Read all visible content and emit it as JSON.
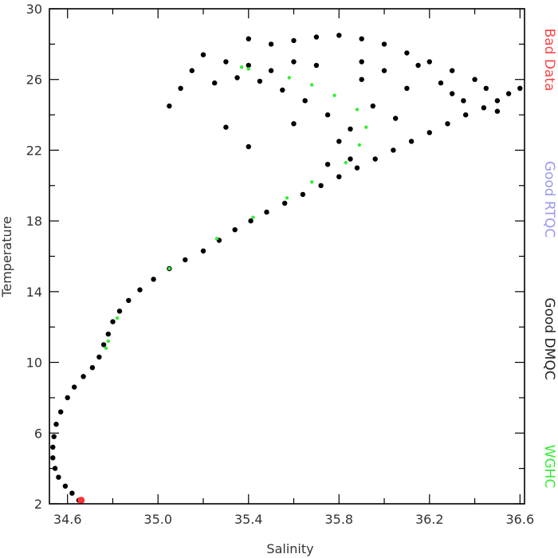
{
  "chart_data": {
    "type": "scatter",
    "title": "",
    "xlabel": "Salinity",
    "ylabel": "Temperature",
    "xlim": [
      34.52,
      36.62
    ],
    "ylim": [
      2,
      30
    ],
    "x_ticks": [
      34.6,
      35.0,
      35.4,
      35.8,
      36.2,
      36.6
    ],
    "x_tick_labels": [
      "34.6",
      "35.0",
      "35.4",
      "35.8",
      "36.2",
      "36.6"
    ],
    "y_ticks": [
      2,
      6,
      10,
      14,
      18,
      22,
      26,
      30
    ],
    "y_tick_labels": [
      "2",
      "6",
      "10",
      "14",
      "18",
      "22",
      "26",
      "30"
    ],
    "grid": false,
    "legend_placement": "right, rotated vertically",
    "legend": [
      {
        "label": "Bad Data",
        "color": "#ff4444"
      },
      {
        "label": "Good RTQC",
        "color": "#9999ee"
      },
      {
        "label": "Good DMQC",
        "color": "#222222"
      },
      {
        "label": "WGHC",
        "color": "#33ee33"
      }
    ],
    "series": [
      {
        "legend_ref": "Good DMQC",
        "color": "#000000",
        "points": [
          [
            34.65,
            2.2
          ],
          [
            34.62,
            2.6
          ],
          [
            34.59,
            3.0
          ],
          [
            34.56,
            3.5
          ],
          [
            34.545,
            4.0
          ],
          [
            34.535,
            4.6
          ],
          [
            34.535,
            5.2
          ],
          [
            34.54,
            5.8
          ],
          [
            34.55,
            6.5
          ],
          [
            34.57,
            7.2
          ],
          [
            34.6,
            8.0
          ],
          [
            34.63,
            8.6
          ],
          [
            34.67,
            9.2
          ],
          [
            34.71,
            9.7
          ],
          [
            34.74,
            10.3
          ],
          [
            34.76,
            11.0
          ],
          [
            34.78,
            11.6
          ],
          [
            34.8,
            12.3
          ],
          [
            34.83,
            12.9
          ],
          [
            34.87,
            13.5
          ],
          [
            34.92,
            14.1
          ],
          [
            34.98,
            14.7
          ],
          [
            35.05,
            15.3
          ],
          [
            35.12,
            15.8
          ],
          [
            35.2,
            16.3
          ],
          [
            35.27,
            16.9
          ],
          [
            35.34,
            17.5
          ],
          [
            35.41,
            18.0
          ],
          [
            35.48,
            18.5
          ],
          [
            35.56,
            19.0
          ],
          [
            35.64,
            19.5
          ],
          [
            35.72,
            20.0
          ],
          [
            35.8,
            20.5
          ],
          [
            35.88,
            21.0
          ],
          [
            35.96,
            21.5
          ],
          [
            36.04,
            22.0
          ],
          [
            36.12,
            22.5
          ],
          [
            36.2,
            23.0
          ],
          [
            36.28,
            23.5
          ],
          [
            36.36,
            24.0
          ],
          [
            36.44,
            24.4
          ],
          [
            36.5,
            24.8
          ],
          [
            36.55,
            25.2
          ],
          [
            36.6,
            25.5
          ],
          [
            36.45,
            25.5
          ],
          [
            36.4,
            26.0
          ],
          [
            36.3,
            26.5
          ],
          [
            36.2,
            27.0
          ],
          [
            36.1,
            27.5
          ],
          [
            36.0,
            28.0
          ],
          [
            35.9,
            28.3
          ],
          [
            35.8,
            28.5
          ],
          [
            35.7,
            28.4
          ],
          [
            35.6,
            28.2
          ],
          [
            35.5,
            28.0
          ],
          [
            35.4,
            28.3
          ],
          [
            35.9,
            27.0
          ],
          [
            36.0,
            26.5
          ],
          [
            36.1,
            25.5
          ],
          [
            35.7,
            26.8
          ],
          [
            35.6,
            27.0
          ],
          [
            35.5,
            26.5
          ],
          [
            35.4,
            26.8
          ],
          [
            35.3,
            27.0
          ],
          [
            35.2,
            27.4
          ],
          [
            35.15,
            26.5
          ],
          [
            35.1,
            25.5
          ],
          [
            35.05,
            24.5
          ],
          [
            35.25,
            25.8
          ],
          [
            35.35,
            26.1
          ],
          [
            35.45,
            25.9
          ],
          [
            35.55,
            25.4
          ],
          [
            35.65,
            24.8
          ],
          [
            35.75,
            24.0
          ],
          [
            35.85,
            23.2
          ],
          [
            35.95,
            24.5
          ],
          [
            36.05,
            23.8
          ],
          [
            35.3,
            23.3
          ],
          [
            35.4,
            22.2
          ],
          [
            35.6,
            23.5
          ],
          [
            35.8,
            22.5
          ],
          [
            35.85,
            21.5
          ],
          [
            35.75,
            21.2
          ],
          [
            35.9,
            26.0
          ],
          [
            36.15,
            26.8
          ],
          [
            36.25,
            25.8
          ],
          [
            36.35,
            24.8
          ],
          [
            36.3,
            25.2
          ],
          [
            36.5,
            24.2
          ]
        ]
      },
      {
        "legend_ref": "WGHC",
        "color": "#33ee33",
        "points": [
          [
            35.37,
            26.7
          ],
          [
            35.4,
            26.6
          ],
          [
            35.58,
            26.1
          ],
          [
            35.68,
            25.7
          ],
          [
            35.78,
            25.1
          ],
          [
            35.88,
            24.3
          ],
          [
            35.92,
            23.3
          ],
          [
            35.89,
            22.3
          ],
          [
            35.83,
            21.3
          ],
          [
            35.68,
            20.2
          ],
          [
            35.57,
            19.3
          ],
          [
            35.42,
            18.2
          ],
          [
            35.26,
            17.0
          ],
          [
            35.05,
            15.3
          ],
          [
            34.82,
            12.5
          ],
          [
            34.78,
            11.2
          ],
          [
            34.77,
            10.8
          ]
        ]
      },
      {
        "legend_ref": "Bad Data",
        "color": "#ff3333",
        "points": [
          [
            34.66,
            2.2
          ]
        ]
      }
    ]
  }
}
